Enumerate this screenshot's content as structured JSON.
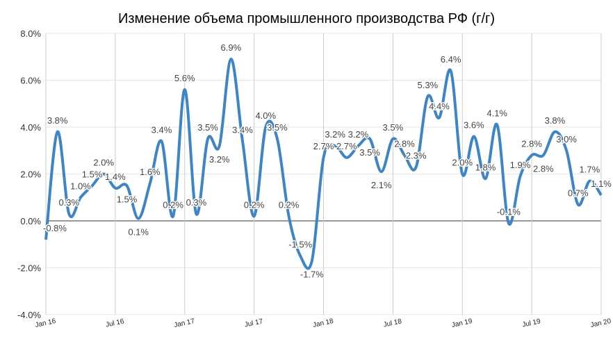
{
  "chart_data": {
    "type": "line",
    "title": "Изменение объема промышленного производства РФ (г/г)",
    "xlabel": "",
    "ylabel": "",
    "ylim": [
      -4,
      8
    ],
    "yticks": [
      "-4.0%",
      "-2.0%",
      "0.0%",
      "2.0%",
      "4.0%",
      "6.0%",
      "8.0%"
    ],
    "ytick_values": [
      -4,
      -2,
      0,
      2,
      4,
      6,
      8
    ],
    "xticks": [
      "Jan 16",
      "Jul 16",
      "Jan 17",
      "Jul 17",
      "Jan 18",
      "Jul 18",
      "Jan 19",
      "Jul 19",
      "Jan 20"
    ],
    "xtick_index": [
      0,
      6,
      12,
      18,
      24,
      30,
      36,
      42,
      48
    ],
    "grid": true,
    "line_color": "#3d85c6",
    "series": [
      {
        "name": "Изменение объема промышленного производства",
        "values": [
          -0.8,
          3.8,
          0.3,
          1.0,
          1.5,
          2.0,
          1.4,
          1.5,
          0.1,
          1.6,
          3.4,
          0.2,
          5.6,
          0.3,
          3.5,
          3.2,
          6.9,
          3.4,
          0.2,
          4.0,
          3.5,
          0.2,
          -1.5,
          -1.7,
          2.7,
          3.2,
          2.7,
          3.2,
          3.5,
          2.1,
          3.5,
          2.8,
          2.3,
          5.3,
          4.4,
          6.4,
          2.0,
          3.6,
          1.8,
          4.1,
          -0.1,
          1.9,
          2.8,
          2.8,
          3.8,
          3.0,
          0.7,
          1.7,
          1.1
        ],
        "labels": [
          "-0.8%",
          "3.8%",
          "0.3%",
          "1.0%",
          "1.5%",
          "2.0%",
          "1.4%",
          "1.5%",
          "0.1%",
          "1.6%",
          "3.4%",
          "0.2%",
          "5.6%",
          "0.3%",
          "3.5%",
          "3.2%",
          "6.9%",
          "3.4%",
          "0.2%",
          "4.0%",
          "3.5%",
          "0.2%",
          "-1.5%",
          "-1.7%",
          "2.7%",
          "3.2%",
          "2.7%",
          "3.2%",
          "3.5%",
          "2.1%",
          "3.5%",
          "2.8%",
          "2.3%",
          "5.3%",
          "4.4%",
          "6.4%",
          "2.0%",
          "3.6%",
          "1.8%",
          "4.1%",
          "-0.1%",
          "1.9%",
          "2.8%",
          "2.8%",
          "3.8%",
          "3.0%",
          "0.7%",
          "1.7%",
          "1.1%"
        ]
      }
    ]
  }
}
